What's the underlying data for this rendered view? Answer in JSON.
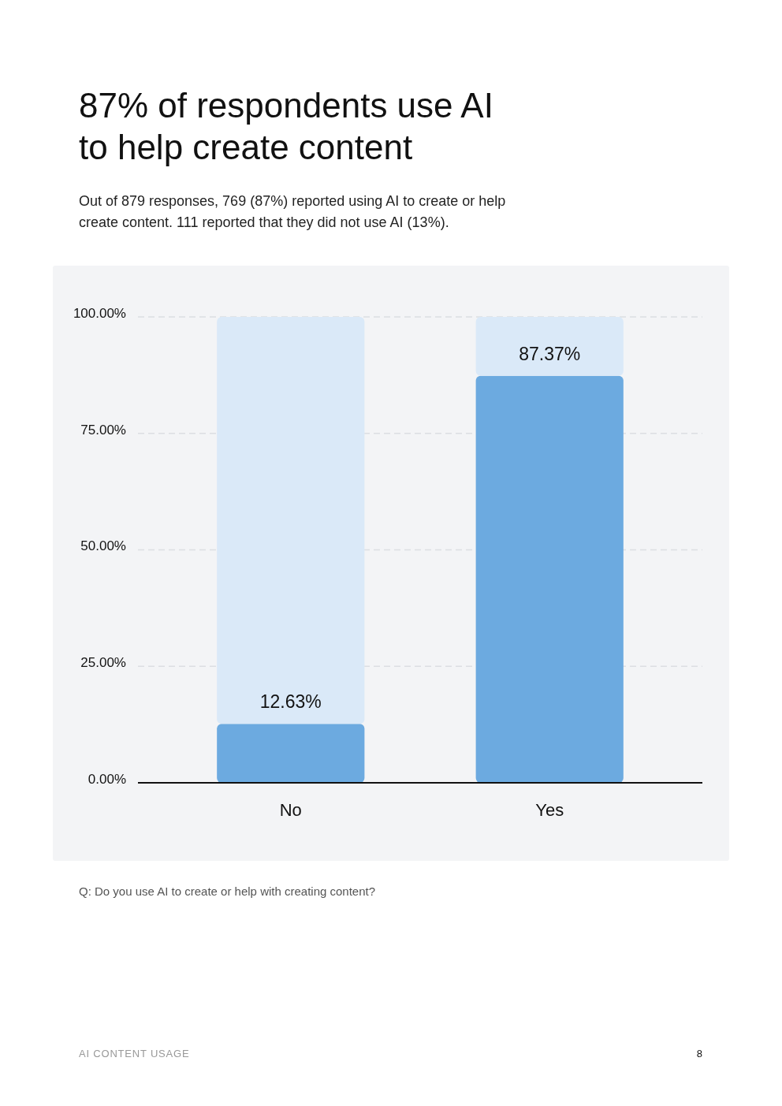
{
  "chart_data": {
    "type": "bar",
    "title": "87% of respondents use AI to help create content",
    "subtitle": "Out of 879 responses, 769 (87%) reported using AI to create or help create content. 111 reported that they did not use AI (13%).",
    "categories": [
      "No",
      "Yes"
    ],
    "stacked": true,
    "series": [
      {
        "color": "#6caae0",
        "values": [
          12.63,
          87.37
        ],
        "value_labels": [
          "12.63%",
          "87.37%"
        ]
      },
      {
        "color": "#dae9f8",
        "values": [
          87.37,
          12.63
        ]
      }
    ],
    "ylim": [
      0,
      100
    ],
    "yticks": [
      {
        "value": 0,
        "label": "0.00%"
      },
      {
        "value": 25,
        "label": "25.00%"
      },
      {
        "value": 50,
        "label": "50.00%"
      },
      {
        "value": 75,
        "label": "75.00%"
      },
      {
        "value": 100,
        "label": "100.00%"
      }
    ],
    "grid": "y",
    "annotations": [
      "Q: Do you use AI to create or help with creating content?",
      "AI CONTENT USAGE",
      "8"
    ]
  }
}
